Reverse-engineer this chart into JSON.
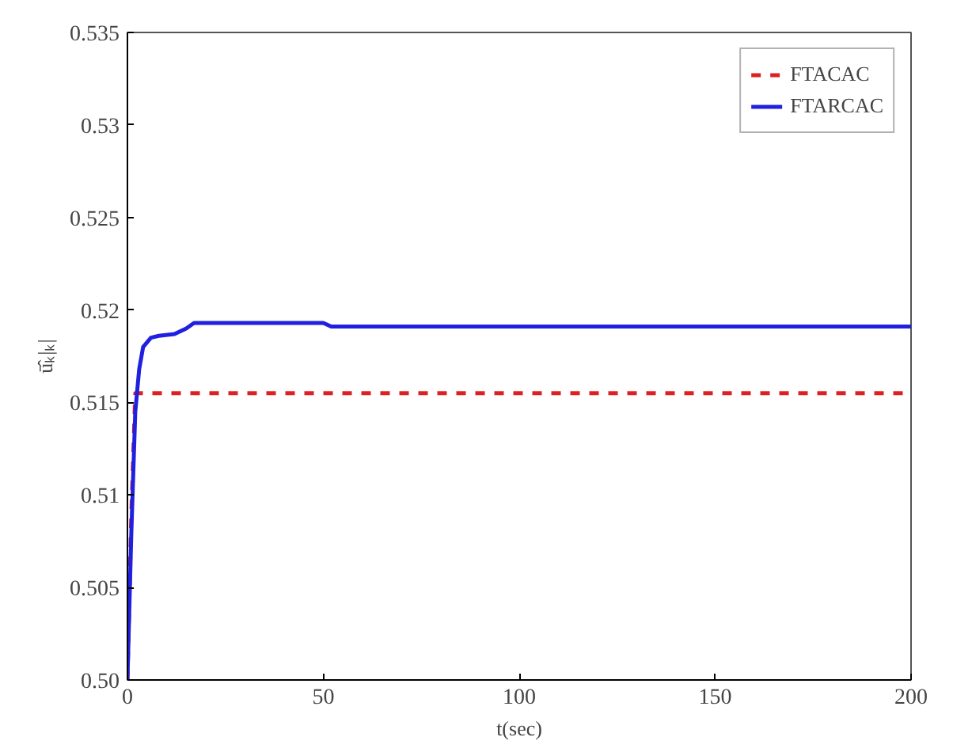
{
  "chart_data": {
    "type": "line",
    "xlabel": "t(sec)",
    "ylabel": "ū̂ₖ|ₖ|",
    "xlim": [
      0,
      200
    ],
    "xticks": [
      0,
      50,
      100,
      150,
      200
    ],
    "ylim": [
      0.5,
      0.535
    ],
    "yticks": [
      {
        "value": 0.5,
        "label": "0.50"
      },
      0.505,
      0.51,
      0.515,
      0.52,
      0.525,
      0.53,
      0.535
    ],
    "grid": false,
    "legend": "top right",
    "series": [
      {
        "name": "FTACAC",
        "color": "#e02020",
        "line_style": "dashed",
        "x": [
          0,
          1,
          2,
          200
        ],
        "values": [
          0.5,
          0.509,
          0.5155,
          0.5155
        ]
      },
      {
        "name": "FTARCAC",
        "color": "#2020e0",
        "line_style": "solid",
        "x": [
          0,
          1,
          2,
          3,
          4,
          6,
          8,
          12,
          15,
          17,
          50,
          52,
          200
        ],
        "values": [
          0.5,
          0.508,
          0.5145,
          0.5168,
          0.518,
          0.5185,
          0.5186,
          0.5187,
          0.519,
          0.5193,
          0.5193,
          0.5191,
          0.5191
        ]
      }
    ]
  }
}
